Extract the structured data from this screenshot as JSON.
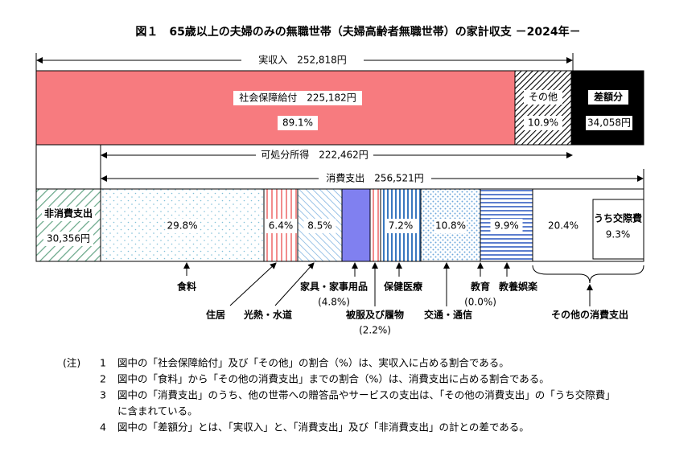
{
  "title": "図１　65歳以上の夫婦のみの無職世帯（夫婦高齢者無職世帯）の家計収支 －2024年－",
  "income": {
    "label": "実収入　252,818円",
    "social_security": "社会保障給付　225,182円",
    "social_security_share": "89.1%",
    "other": "その他",
    "other_share": "10.9%",
    "surplus": "差額分",
    "surplus_amount": "34,058円"
  },
  "disposable_income": "可処分所得　222,462円",
  "consumption": "消費支出　256,521円",
  "non_consumption": {
    "label": "非消費支出",
    "amount": "30,356円"
  },
  "expenditures": [
    {
      "name": "食料",
      "share": "29.8%"
    },
    {
      "name": "住居",
      "share": "6.4%"
    },
    {
      "name": "光熱・水道",
      "share": "8.5%"
    },
    {
      "name": "家具・家事用品",
      "share": "(4.8%)"
    },
    {
      "name": "被服及び履物",
      "share": "(2.2%)"
    },
    {
      "name": "保健医療",
      "share": "7.2%"
    },
    {
      "name": "交通・通信",
      "share": "10.8%"
    },
    {
      "name": "教育",
      "share": "(0.0%)"
    },
    {
      "name": "教養娯楽",
      "share": "9.9%"
    },
    {
      "name": "その他の消費支出",
      "share": "20.4%",
      "sub_label": "うち交際費",
      "sub_share": "9.3%"
    }
  ],
  "notes": {
    "label": "(注)",
    "items": [
      {
        "number": "1",
        "lines": [
          "図中の「社会保障給付」及び「その他」の割合（%）は、実収入に占める割合である。"
        ]
      },
      {
        "number": "2",
        "lines": [
          "図中の「食料」から「その他の消費支出」までの割合（%）は、消費支出に占める割合である。"
        ]
      },
      {
        "number": "3",
        "lines": [
          "図中の「消費支出」のうち、他の世帯への贈答品やサービスの支出は、「その他の消費支出」の「うち交際費」",
          "に含まれている。"
        ]
      },
      {
        "number": "4",
        "lines": [
          "図中の「差額分」とは、「実収入」と、「消費支出」及び「非消費支出」の計との差である。"
        ]
      }
    ]
  }
}
